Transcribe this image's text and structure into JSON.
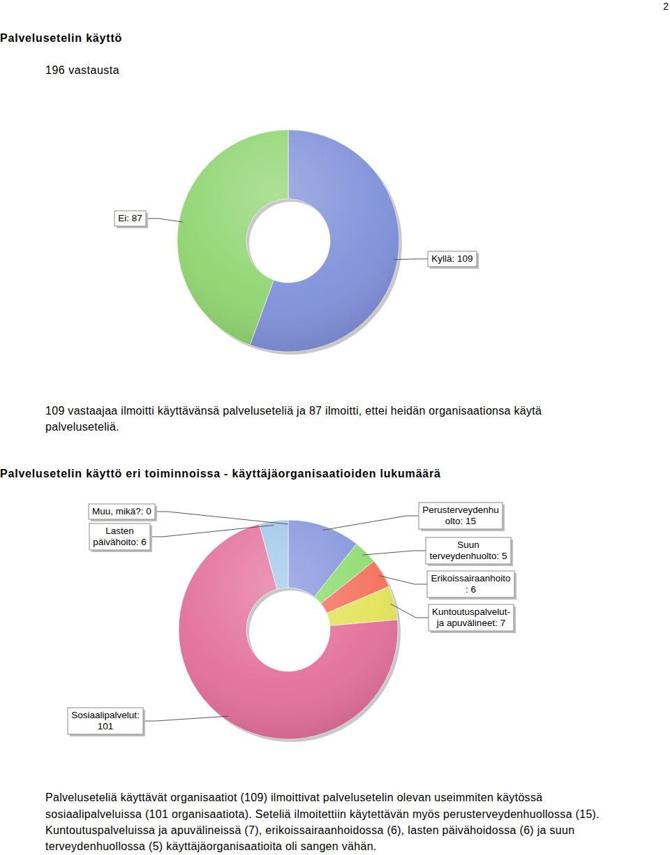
{
  "page_number": "2",
  "chart_data": [
    {
      "type": "pie",
      "title": "Palvelusetelin käyttö",
      "subtitle": "196 vastausta",
      "values": [
        109,
        87
      ],
      "value_labels": [
        [
          "Kyllä: 109"
        ],
        [
          "Ei: 87"
        ]
      ],
      "colors": [
        "#7f90d9",
        "#8fd470"
      ]
    },
    {
      "type": "pie",
      "title": "Palvelusetelin käyttö eri toiminnoissa - käyttäjäorganisaatioiden lukumäärä",
      "values": [
        15,
        5,
        6,
        7,
        101,
        6,
        0
      ],
      "value_labels": [
        [
          "Perusterveydenhu",
          "olto: 15"
        ],
        [
          "Suun",
          "terveydenhuolto: 5"
        ],
        [
          "Erikoissairaanhoito",
          ": 6"
        ],
        [
          "Kuntoutuspalvelut-",
          "ja apuvälineet: 7"
        ],
        [
          "Sosiaalipalvelut:",
          "101"
        ],
        [
          "Lasten",
          "päivähoito: 6"
        ],
        [
          "Muu, mikä?: 0"
        ]
      ],
      "colors": [
        "#8494dc",
        "#8edb6e",
        "#f4705c",
        "#e3e35a",
        "#e36f98",
        "#9fc6e8",
        "#c8c8c8"
      ]
    }
  ],
  "paragraphs": [
    [
      "109 vastaajaa ilmoitti käyttävänsä palveluseteliä ja 87 ilmoitti, ettei heidän organisaationsa käytä",
      "palveluseteliä."
    ],
    [
      "Palveluseteliä käyttävät organisaatiot (109) ilmoittivat palvelusetelin olevan useimmiten käytössä",
      "sosiaalipalveluissa (101 organisaatiota). Seteliä ilmoitettiin käytettävän myös perusterveydenhuollossa (15).",
      "Kuntoutuspalveluissa ja apuvälineissä (7), erikoissairaanhoidossa (6), lasten päivähoidossa (6) ja suun",
      "terveydenhuollossa (5) käyttäjäorganisaatioita oli sangen vähän."
    ]
  ]
}
